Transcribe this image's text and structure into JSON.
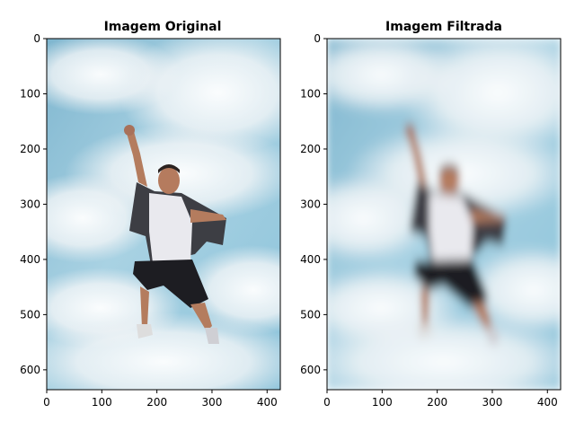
{
  "chart_data": [
    {
      "type": "image",
      "title": "Imagem Original",
      "image_description_color_sky": "#8fc3d9",
      "x_ticks": [
        0,
        100,
        200,
        300,
        400
      ],
      "y_ticks": [
        0,
        100,
        200,
        300,
        400,
        500,
        600
      ],
      "xlim": [
        0,
        424
      ],
      "ylim": [
        636,
        0
      ],
      "filtered": false
    },
    {
      "type": "image",
      "title": "Imagem Filtrada",
      "x_ticks": [
        0,
        100,
        200,
        300,
        400
      ],
      "y_ticks": [
        0,
        100,
        200,
        300,
        400,
        500,
        600
      ],
      "xlim": [
        0,
        424
      ],
      "ylim": [
        636,
        0
      ],
      "filtered": true
    }
  ]
}
